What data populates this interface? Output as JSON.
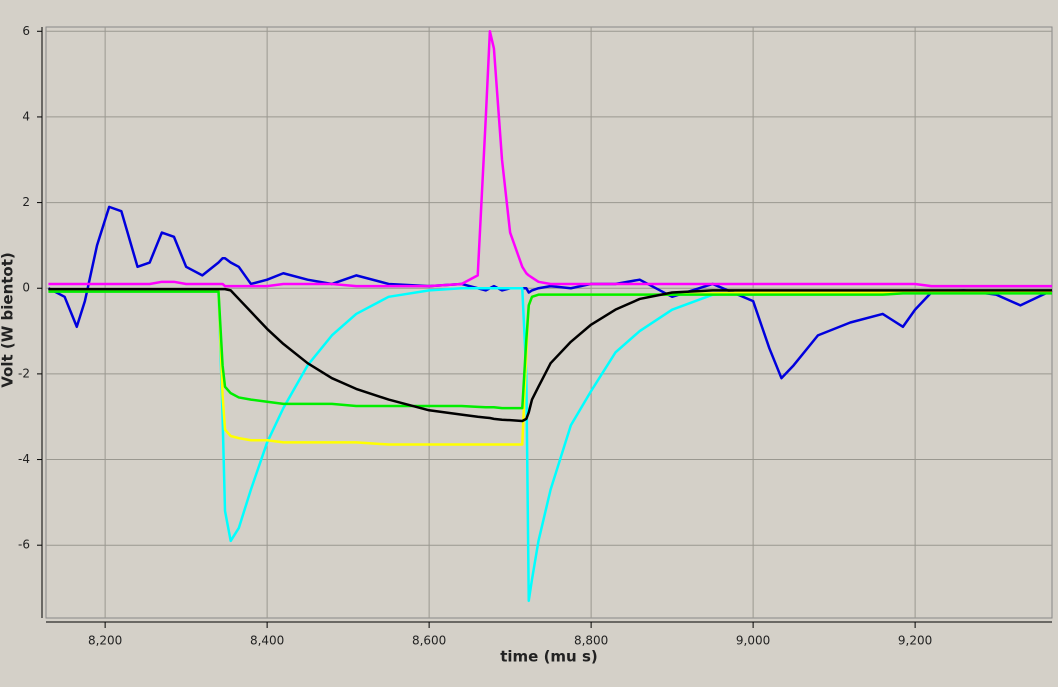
{
  "chart_data": {
    "type": "line",
    "x_label": "time (mu s)",
    "y_label": "Volt (W bientot)",
    "grid": true,
    "xlim": [
      8127,
      9369
    ],
    "ylim": [
      -7.7,
      6.1
    ],
    "xticks": [
      {
        "value": 8200,
        "label": "8,200"
      },
      {
        "value": 8400,
        "label": "8,400"
      },
      {
        "value": 8600,
        "label": "8,600"
      },
      {
        "value": 8800,
        "label": "8,800"
      },
      {
        "value": 9000,
        "label": "9,000"
      },
      {
        "value": 9200,
        "label": "9,200"
      }
    ],
    "yticks": [
      -6,
      -4,
      -2,
      0,
      2,
      4,
      6
    ],
    "x": [
      8130,
      8150,
      8165,
      8175,
      8190,
      8205,
      8220,
      8240,
      8255,
      8270,
      8285,
      8300,
      8320,
      8340,
      8345,
      8348,
      8355,
      8365,
      8380,
      8400,
      8420,
      8450,
      8480,
      8510,
      8550,
      8600,
      8640,
      8660,
      8670,
      8675,
      8680,
      8690,
      8700,
      8715,
      8720,
      8723,
      8727,
      8735,
      8750,
      8775,
      8800,
      8830,
      8860,
      8900,
      8950,
      9000,
      9020,
      9035,
      9050,
      9080,
      9120,
      9160,
      9185,
      9200,
      9220,
      9260,
      9300,
      9330,
      9369
    ],
    "series": [
      {
        "color": "#0000dd",
        "values": [
          0,
          -0.2,
          -0.9,
          -0.3,
          1.0,
          1.9,
          1.8,
          0.5,
          0.6,
          1.3,
          1.2,
          0.5,
          0.3,
          0.6,
          0.7,
          0.7,
          0.6,
          0.5,
          0.1,
          0.2,
          0.35,
          0.2,
          0.1,
          0.3,
          0.1,
          0.05,
          0.1,
          0,
          -0.05,
          0,
          0.05,
          -0.05,
          0,
          0,
          0,
          -0.1,
          -0.05,
          0,
          0.05,
          0,
          0.1,
          0.1,
          0.2,
          -0.2,
          0.1,
          -0.3,
          -1.4,
          -2.1,
          -1.8,
          -1.1,
          -0.8,
          -0.6,
          -0.9,
          -0.5,
          -0.1,
          -0.05,
          -0.15,
          -0.4,
          -0.05
        ]
      },
      {
        "color": "#ff00ff",
        "values": [
          0.1,
          0.1,
          0.1,
          0.1,
          0.1,
          0.1,
          0.1,
          0.1,
          0.1,
          0.15,
          0.15,
          0.1,
          0.1,
          0.1,
          0.1,
          0.05,
          0.05,
          0.05,
          0.05,
          0.05,
          0.1,
          0.1,
          0.1,
          0.05,
          0.05,
          0.05,
          0.1,
          0.3,
          4.0,
          6.0,
          5.6,
          3.0,
          1.3,
          0.5,
          0.35,
          0.3,
          0.25,
          0.15,
          0.1,
          0.1,
          0.1,
          0.1,
          0.1,
          0.1,
          0.1,
          0.1,
          0.1,
          0.1,
          0.1,
          0.1,
          0.1,
          0.1,
          0.1,
          0.1,
          0.05,
          0.05,
          0.05,
          0.05,
          0.05
        ]
      },
      {
        "color": "#00ffff",
        "values": [
          -0.05,
          -0.05,
          -0.05,
          -0.05,
          -0.05,
          -0.05,
          -0.05,
          -0.05,
          -0.05,
          -0.05,
          -0.05,
          -0.05,
          -0.05,
          -0.05,
          -3.0,
          -5.2,
          -5.9,
          -5.6,
          -4.7,
          -3.6,
          -2.8,
          -1.8,
          -1.1,
          -0.6,
          -0.2,
          -0.05,
          0,
          0,
          0,
          0,
          0,
          0,
          0,
          0,
          -2.0,
          -7.3,
          -6.8,
          -5.9,
          -4.7,
          -3.2,
          -2.4,
          -1.5,
          -1.0,
          -0.5,
          -0.15,
          -0.1,
          -0.1,
          -0.1,
          -0.1,
          -0.1,
          -0.1,
          -0.1,
          -0.1,
          -0.1,
          -0.1,
          -0.1,
          -0.1,
          -0.1,
          -0.1
        ]
      },
      {
        "color": "#ffff00",
        "values": [
          -0.05,
          -0.05,
          -0.05,
          -0.05,
          -0.05,
          -0.05,
          -0.05,
          -0.05,
          -0.05,
          -0.05,
          -0.05,
          -0.05,
          -0.05,
          -0.05,
          -2.5,
          -3.3,
          -3.45,
          -3.5,
          -3.55,
          -3.55,
          -3.6,
          -3.6,
          -3.6,
          -3.6,
          -3.65,
          -3.65,
          -3.65,
          -3.65,
          -3.65,
          -3.65,
          -3.65,
          -3.65,
          -3.65,
          -3.65,
          -1.5,
          -0.4,
          -0.2,
          -0.15,
          -0.15,
          -0.15,
          -0.15,
          -0.15,
          -0.15,
          -0.15,
          -0.12,
          -0.1,
          -0.1,
          -0.1,
          -0.1,
          -0.1,
          -0.1,
          -0.1,
          -0.1,
          -0.1,
          -0.1,
          -0.1,
          -0.1,
          -0.1,
          -0.1
        ]
      },
      {
        "color": "#00ee00",
        "values": [
          -0.08,
          -0.08,
          -0.08,
          -0.08,
          -0.08,
          -0.08,
          -0.08,
          -0.08,
          -0.08,
          -0.08,
          -0.08,
          -0.08,
          -0.08,
          -0.08,
          -1.8,
          -2.3,
          -2.45,
          -2.55,
          -2.6,
          -2.65,
          -2.7,
          -2.7,
          -2.7,
          -2.75,
          -2.75,
          -2.75,
          -2.75,
          -2.77,
          -2.78,
          -2.78,
          -2.78,
          -2.8,
          -2.8,
          -2.8,
          -1.2,
          -0.4,
          -0.2,
          -0.15,
          -0.15,
          -0.15,
          -0.15,
          -0.15,
          -0.15,
          -0.15,
          -0.15,
          -0.15,
          -0.15,
          -0.15,
          -0.15,
          -0.15,
          -0.15,
          -0.15,
          -0.12,
          -0.12,
          -0.12,
          -0.12,
          -0.12,
          -0.12,
          -0.12
        ]
      },
      {
        "color": "#000000",
        "values": [
          -0.02,
          -0.02,
          -0.02,
          -0.02,
          -0.02,
          -0.02,
          -0.02,
          -0.02,
          -0.02,
          -0.02,
          -0.02,
          -0.02,
          -0.02,
          -0.02,
          -0.02,
          -0.02,
          -0.05,
          -0.25,
          -0.55,
          -0.95,
          -1.3,
          -1.75,
          -2.1,
          -2.35,
          -2.6,
          -2.85,
          -2.95,
          -3.0,
          -3.02,
          -3.03,
          -3.05,
          -3.07,
          -3.08,
          -3.1,
          -3.05,
          -2.9,
          -2.6,
          -2.3,
          -1.75,
          -1.25,
          -0.85,
          -0.5,
          -0.25,
          -0.1,
          -0.05,
          -0.05,
          -0.05,
          -0.05,
          -0.05,
          -0.05,
          -0.05,
          -0.05,
          -0.05,
          -0.05,
          -0.05,
          -0.05,
          -0.05,
          -0.05,
          -0.05
        ]
      }
    ]
  }
}
